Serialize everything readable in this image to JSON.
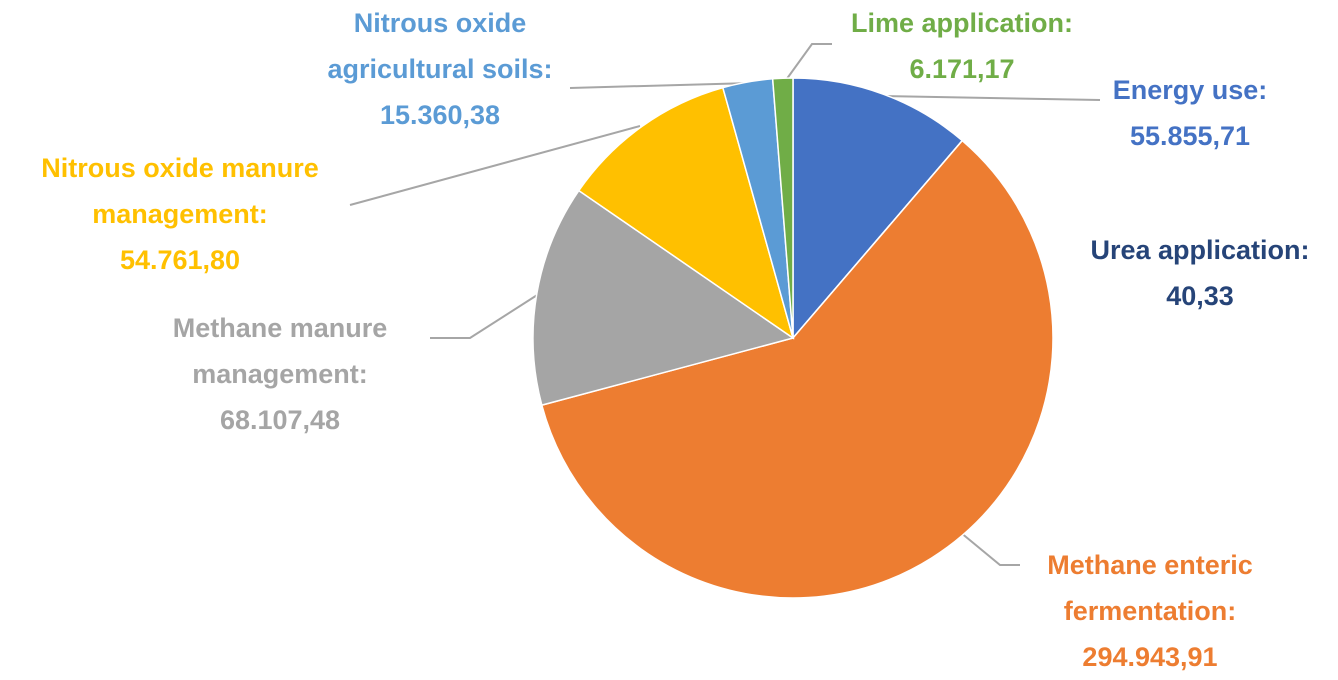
{
  "chart_data": {
    "type": "pie",
    "categories": [
      "Energy use:",
      "Urea application:",
      "Methane enteric fermentation:",
      "Methane manure management:",
      "Nitrous oxide manure management:",
      "Nitrous oxide agricultural soils:",
      "Lime application:"
    ],
    "values": [
      55855.71,
      40.33,
      294943.91,
      68107.48,
      54761.8,
      15360.38,
      6171.17
    ],
    "value_labels": [
      "55.855,71",
      "40,33",
      "294.943,91",
      "68.107,48",
      "54.761,80",
      "15.360,38",
      "6.171,17"
    ],
    "colors": [
      "#4472c4",
      "#264478",
      "#ed7d31",
      "#a5a5a5",
      "#ffc000",
      "#5b9bd5",
      "#70ad47"
    ]
  }
}
